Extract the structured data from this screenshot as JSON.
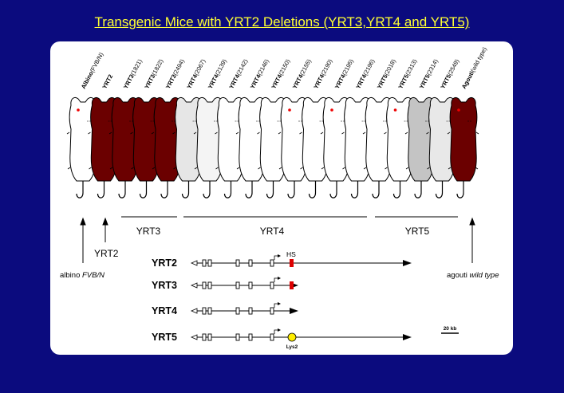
{
  "title": "Transgenic Mice with YRT2 Deletions (YRT3,YRT4 and YRT5)",
  "mice": [
    {
      "line": "Albino",
      "id": "(FVB/N)",
      "color": "#ffffff",
      "eye": true
    },
    {
      "line": "YRT2",
      "id": "",
      "color": "#6b0000",
      "eye": false
    },
    {
      "line": "YRT3",
      "id": "(1821)",
      "color": "#6b0000",
      "eye": false
    },
    {
      "line": "YRT3",
      "id": "(1822)",
      "color": "#6b0000",
      "eye": false
    },
    {
      "line": "YRT3",
      "id": "(2494)",
      "color": "#6b0000",
      "eye": false
    },
    {
      "line": "YRT4",
      "id": "(2067)",
      "color": "#e6e6e6",
      "eye": false
    },
    {
      "line": "YRT4",
      "id": "(2139)",
      "color": "#f4f4f4",
      "eye": false
    },
    {
      "line": "YRT4",
      "id": "(2142)",
      "color": "#ffffff",
      "eye": false
    },
    {
      "line": "YRT4",
      "id": "(2146)",
      "color": "#ffffff",
      "eye": false
    },
    {
      "line": "YRT4",
      "id": "(2150)",
      "color": "#ffffff",
      "eye": false
    },
    {
      "line": "YRT4",
      "id": "(2155)",
      "color": "#ffffff",
      "eye": true
    },
    {
      "line": "YRT4",
      "id": "(2190)",
      "color": "#ffffff",
      "eye": false
    },
    {
      "line": "YRT4",
      "id": "(2195)",
      "color": "#ffffff",
      "eye": true
    },
    {
      "line": "YRT4",
      "id": "(2196)",
      "color": "#ffffff",
      "eye": false
    },
    {
      "line": "YRT5",
      "id": "(2018)",
      "color": "#ffffff",
      "eye": false
    },
    {
      "line": "YRT5",
      "id": "(2313)",
      "color": "#ffffff",
      "eye": true
    },
    {
      "line": "YRT5",
      "id": "(2314)",
      "color": "#c4c4c4",
      "eye": false
    },
    {
      "line": "YRT5",
      "id": "(2549)",
      "color": "#e8e8e8",
      "eye": false
    },
    {
      "line": "Agouti",
      "id": "(wild type)",
      "color": "#6b0000",
      "eye": true
    }
  ],
  "groups": {
    "yrt3": "YRT3",
    "yrt4": "YRT4",
    "yrt5": "YRT5"
  },
  "side_labels": {
    "yrt2": "YRT2",
    "albino_prefix": "albino ",
    "albino_strain": "FVB/N",
    "agouti_prefix": "agouti ",
    "agouti_type": "wild type"
  },
  "constructs": [
    {
      "name": "YRT2",
      "marker": "hs",
      "end": "long"
    },
    {
      "name": "YRT3",
      "marker": "hs",
      "end": "short"
    },
    {
      "name": "YRT4",
      "marker": "none",
      "end": "short"
    },
    {
      "name": "YRT5",
      "marker": "lys",
      "end": "long"
    }
  ],
  "markers": {
    "hs_label": "HS",
    "lys_label": "Lys2",
    "hs_color": "#dd0000",
    "lys_color": "#ffee00"
  },
  "scale_bar_label": "20 kb"
}
